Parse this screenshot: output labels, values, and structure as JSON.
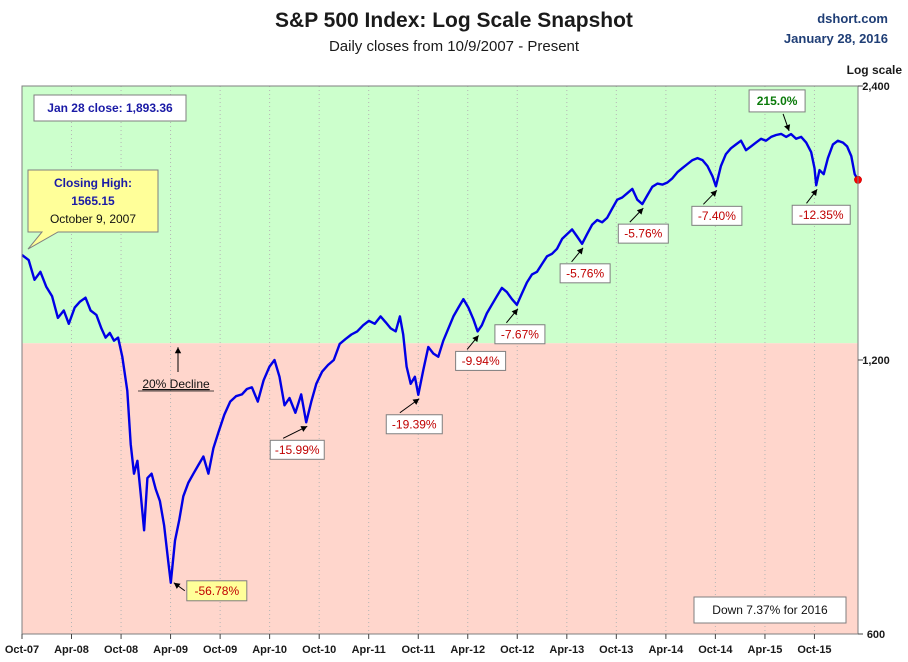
{
  "header": {
    "title": "S&P 500 Index: Log Scale Snapshot",
    "subtitle": "Daily closes from 10/9/2007 - Present",
    "source": "dshort.com",
    "date": "January 28, 2016"
  },
  "chart_data": {
    "type": "line",
    "title": "S&P 500 Index: Log Scale Snapshot",
    "subtitle": "Daily closes from 10/9/2007 - Present",
    "ylabel": "Log scale",
    "yscale": "log",
    "ylim": [
      600,
      2400
    ],
    "yticks": [
      {
        "value": 600,
        "label": "600"
      },
      {
        "value": 1200,
        "label": "1,200"
      },
      {
        "value": 2400,
        "label": "2,400"
      }
    ],
    "xlim": [
      0,
      100
    ],
    "xticks": [
      {
        "x": 0,
        "label": "Oct-07"
      },
      {
        "x": 5.92,
        "label": "Apr-08"
      },
      {
        "x": 11.85,
        "label": "Oct-08"
      },
      {
        "x": 17.77,
        "label": "Apr-09"
      },
      {
        "x": 23.7,
        "label": "Oct-09"
      },
      {
        "x": 29.62,
        "label": "Apr-10"
      },
      {
        "x": 35.55,
        "label": "Oct-10"
      },
      {
        "x": 41.47,
        "label": "Apr-11"
      },
      {
        "x": 47.4,
        "label": "Oct-11"
      },
      {
        "x": 53.32,
        "label": "Apr-12"
      },
      {
        "x": 59.24,
        "label": "Oct-12"
      },
      {
        "x": 65.17,
        "label": "Apr-13"
      },
      {
        "x": 71.09,
        "label": "Oct-13"
      },
      {
        "x": 77.02,
        "label": "Apr-14"
      },
      {
        "x": 82.94,
        "label": "Oct-14"
      },
      {
        "x": 88.87,
        "label": "Apr-15"
      },
      {
        "x": 94.79,
        "label": "Oct-15"
      }
    ],
    "bands": [
      {
        "name": "above-20pct-decline",
        "from": 1252,
        "to": 2400,
        "color": "#ccffcc"
      },
      {
        "name": "below-20pct-decline",
        "from": 600,
        "to": 1252,
        "color": "#ffd6cc"
      }
    ],
    "series": [
      {
        "name": "S&P 500 Daily Close",
        "color": "#0000e6",
        "points": [
          [
            0,
            1565
          ],
          [
            0.8,
            1545
          ],
          [
            1.5,
            1470
          ],
          [
            2.2,
            1500
          ],
          [
            2.9,
            1445
          ],
          [
            3.6,
            1410
          ],
          [
            4.3,
            1335
          ],
          [
            5.0,
            1360
          ],
          [
            5.6,
            1315
          ],
          [
            6.3,
            1370
          ],
          [
            6.9,
            1390
          ],
          [
            7.6,
            1405
          ],
          [
            8.2,
            1360
          ],
          [
            8.9,
            1345
          ],
          [
            9.5,
            1300
          ],
          [
            10.0,
            1270
          ],
          [
            10.5,
            1285
          ],
          [
            11.0,
            1260
          ],
          [
            11.5,
            1270
          ],
          [
            12.0,
            1210
          ],
          [
            12.6,
            1110
          ],
          [
            13.0,
            970
          ],
          [
            13.4,
            900
          ],
          [
            13.8,
            930
          ],
          [
            14.2,
            855
          ],
          [
            14.6,
            780
          ],
          [
            15.0,
            890
          ],
          [
            15.5,
            900
          ],
          [
            16.0,
            865
          ],
          [
            16.5,
            840
          ],
          [
            17.0,
            790
          ],
          [
            17.5,
            720
          ],
          [
            17.8,
            683
          ],
          [
            18.3,
            760
          ],
          [
            18.8,
            800
          ],
          [
            19.3,
            850
          ],
          [
            19.9,
            880
          ],
          [
            20.5,
            900
          ],
          [
            21.1,
            920
          ],
          [
            21.7,
            940
          ],
          [
            22.3,
            900
          ],
          [
            22.9,
            960
          ],
          [
            23.5,
            1000
          ],
          [
            24.2,
            1045
          ],
          [
            24.9,
            1080
          ],
          [
            25.6,
            1095
          ],
          [
            26.3,
            1100
          ],
          [
            26.9,
            1115
          ],
          [
            27.5,
            1120
          ],
          [
            28.2,
            1080
          ],
          [
            28.9,
            1140
          ],
          [
            29.6,
            1180
          ],
          [
            30.2,
            1200
          ],
          [
            30.8,
            1150
          ],
          [
            31.4,
            1070
          ],
          [
            32.0,
            1090
          ],
          [
            32.7,
            1050
          ],
          [
            33.4,
            1100
          ],
          [
            34.0,
            1025
          ],
          [
            34.6,
            1080
          ],
          [
            35.2,
            1130
          ],
          [
            35.9,
            1165
          ],
          [
            36.6,
            1185
          ],
          [
            37.3,
            1200
          ],
          [
            38.0,
            1250
          ],
          [
            38.7,
            1265
          ],
          [
            39.4,
            1280
          ],
          [
            40.1,
            1290
          ],
          [
            40.8,
            1310
          ],
          [
            41.5,
            1325
          ],
          [
            42.2,
            1315
          ],
          [
            42.9,
            1340
          ],
          [
            43.5,
            1320
          ],
          [
            44.1,
            1300
          ],
          [
            44.7,
            1290
          ],
          [
            45.2,
            1340
          ],
          [
            45.6,
            1280
          ],
          [
            46.0,
            1180
          ],
          [
            46.5,
            1130
          ],
          [
            47.0,
            1150
          ],
          [
            47.4,
            1099
          ],
          [
            48.0,
            1170
          ],
          [
            48.6,
            1240
          ],
          [
            49.2,
            1220
          ],
          [
            49.8,
            1210
          ],
          [
            50.4,
            1260
          ],
          [
            51.0,
            1300
          ],
          [
            51.6,
            1340
          ],
          [
            52.2,
            1370
          ],
          [
            52.8,
            1400
          ],
          [
            53.4,
            1370
          ],
          [
            54.0,
            1330
          ],
          [
            54.5,
            1290
          ],
          [
            55.0,
            1310
          ],
          [
            55.6,
            1350
          ],
          [
            56.2,
            1380
          ],
          [
            56.8,
            1410
          ],
          [
            57.4,
            1440
          ],
          [
            58.0,
            1425
          ],
          [
            58.6,
            1400
          ],
          [
            59.2,
            1380
          ],
          [
            59.8,
            1420
          ],
          [
            60.4,
            1460
          ],
          [
            61.0,
            1490
          ],
          [
            61.6,
            1500
          ],
          [
            62.2,
            1530
          ],
          [
            62.8,
            1560
          ],
          [
            63.4,
            1570
          ],
          [
            64.0,
            1590
          ],
          [
            64.6,
            1630
          ],
          [
            65.2,
            1650
          ],
          [
            65.8,
            1670
          ],
          [
            66.4,
            1640
          ],
          [
            67.0,
            1610
          ],
          [
            67.6,
            1650
          ],
          [
            68.2,
            1690
          ],
          [
            68.8,
            1710
          ],
          [
            69.4,
            1700
          ],
          [
            70.0,
            1720
          ],
          [
            70.6,
            1760
          ],
          [
            71.2,
            1800
          ],
          [
            71.8,
            1810
          ],
          [
            72.4,
            1830
          ],
          [
            73.0,
            1850
          ],
          [
            73.6,
            1800
          ],
          [
            74.2,
            1780
          ],
          [
            74.8,
            1820
          ],
          [
            75.4,
            1860
          ],
          [
            76.0,
            1875
          ],
          [
            76.6,
            1870
          ],
          [
            77.2,
            1880
          ],
          [
            77.8,
            1900
          ],
          [
            78.4,
            1930
          ],
          [
            79.0,
            1950
          ],
          [
            79.6,
            1970
          ],
          [
            80.2,
            1990
          ],
          [
            80.8,
            2000
          ],
          [
            81.4,
            1990
          ],
          [
            82.0,
            1960
          ],
          [
            82.6,
            1910
          ],
          [
            83.0,
            1862
          ],
          [
            83.6,
            1960
          ],
          [
            84.2,
            2020
          ],
          [
            84.8,
            2050
          ],
          [
            85.4,
            2070
          ],
          [
            86.0,
            2090
          ],
          [
            86.6,
            2040
          ],
          [
            87.2,
            2060
          ],
          [
            87.8,
            2080
          ],
          [
            88.4,
            2100
          ],
          [
            89.0,
            2090
          ],
          [
            89.6,
            2110
          ],
          [
            90.2,
            2120
          ],
          [
            90.8,
            2126
          ],
          [
            91.4,
            2110
          ],
          [
            92.0,
            2125
          ],
          [
            92.6,
            2100
          ],
          [
            93.2,
            2110
          ],
          [
            93.8,
            2080
          ],
          [
            94.4,
            2030
          ],
          [
            94.8,
            1950
          ],
          [
            95.0,
            1867
          ],
          [
            95.4,
            1940
          ],
          [
            95.9,
            1920
          ],
          [
            96.4,
            2000
          ],
          [
            97.0,
            2070
          ],
          [
            97.6,
            2090
          ],
          [
            98.2,
            2080
          ],
          [
            98.7,
            2060
          ],
          [
            99.2,
            2010
          ],
          [
            99.6,
            1920
          ],
          [
            100,
            1893
          ]
        ]
      }
    ],
    "annotations": [
      {
        "name": "closing-high",
        "lines": [
          "Closing High:",
          "1565.15",
          "October 9, 2007"
        ],
        "anchor": [
          0,
          1565
        ],
        "style": "callout-yellow"
      },
      {
        "name": "jan28-close",
        "text": "Jan 28 close: 1,893.36",
        "style": "box-blue"
      },
      {
        "name": "decline-20pct",
        "text": "20% Decline",
        "style": "arrow-up"
      },
      {
        "name": "peak-gain",
        "text": "215.0%",
        "target": [
          90.8,
          2126
        ],
        "style": "box-green"
      },
      {
        "name": "drawdown-2009",
        "text": "-56.78%",
        "target": [
          17.8,
          683
        ],
        "style": "box-yellow-red"
      },
      {
        "name": "drawdown-2010",
        "text": "-15.99%",
        "target": [
          34.0,
          1025
        ],
        "style": "box-red"
      },
      {
        "name": "drawdown-2011",
        "text": "-19.39%",
        "target": [
          47.4,
          1099
        ],
        "style": "box-red"
      },
      {
        "name": "drawdown-2012a",
        "text": "-9.94%",
        "target": [
          54.5,
          1290
        ],
        "style": "box-red"
      },
      {
        "name": "drawdown-2012b",
        "text": "-7.67%",
        "target": [
          59.2,
          1380
        ],
        "style": "box-red"
      },
      {
        "name": "drawdown-2013a",
        "text": "-5.76%",
        "target": [
          67.0,
          1610
        ],
        "style": "box-red"
      },
      {
        "name": "drawdown-2014a",
        "text": "-5.76%",
        "target": [
          74.2,
          1780
        ],
        "style": "box-red"
      },
      {
        "name": "drawdown-2014b",
        "text": "-7.40%",
        "target": [
          83.0,
          1862
        ],
        "style": "box-red"
      },
      {
        "name": "drawdown-2015",
        "text": "-12.35%",
        "target": [
          95.0,
          1867
        ],
        "style": "box-red"
      },
      {
        "name": "ytd-2016",
        "text": "Down 7.37% for 2016",
        "style": "box-plain"
      }
    ]
  }
}
